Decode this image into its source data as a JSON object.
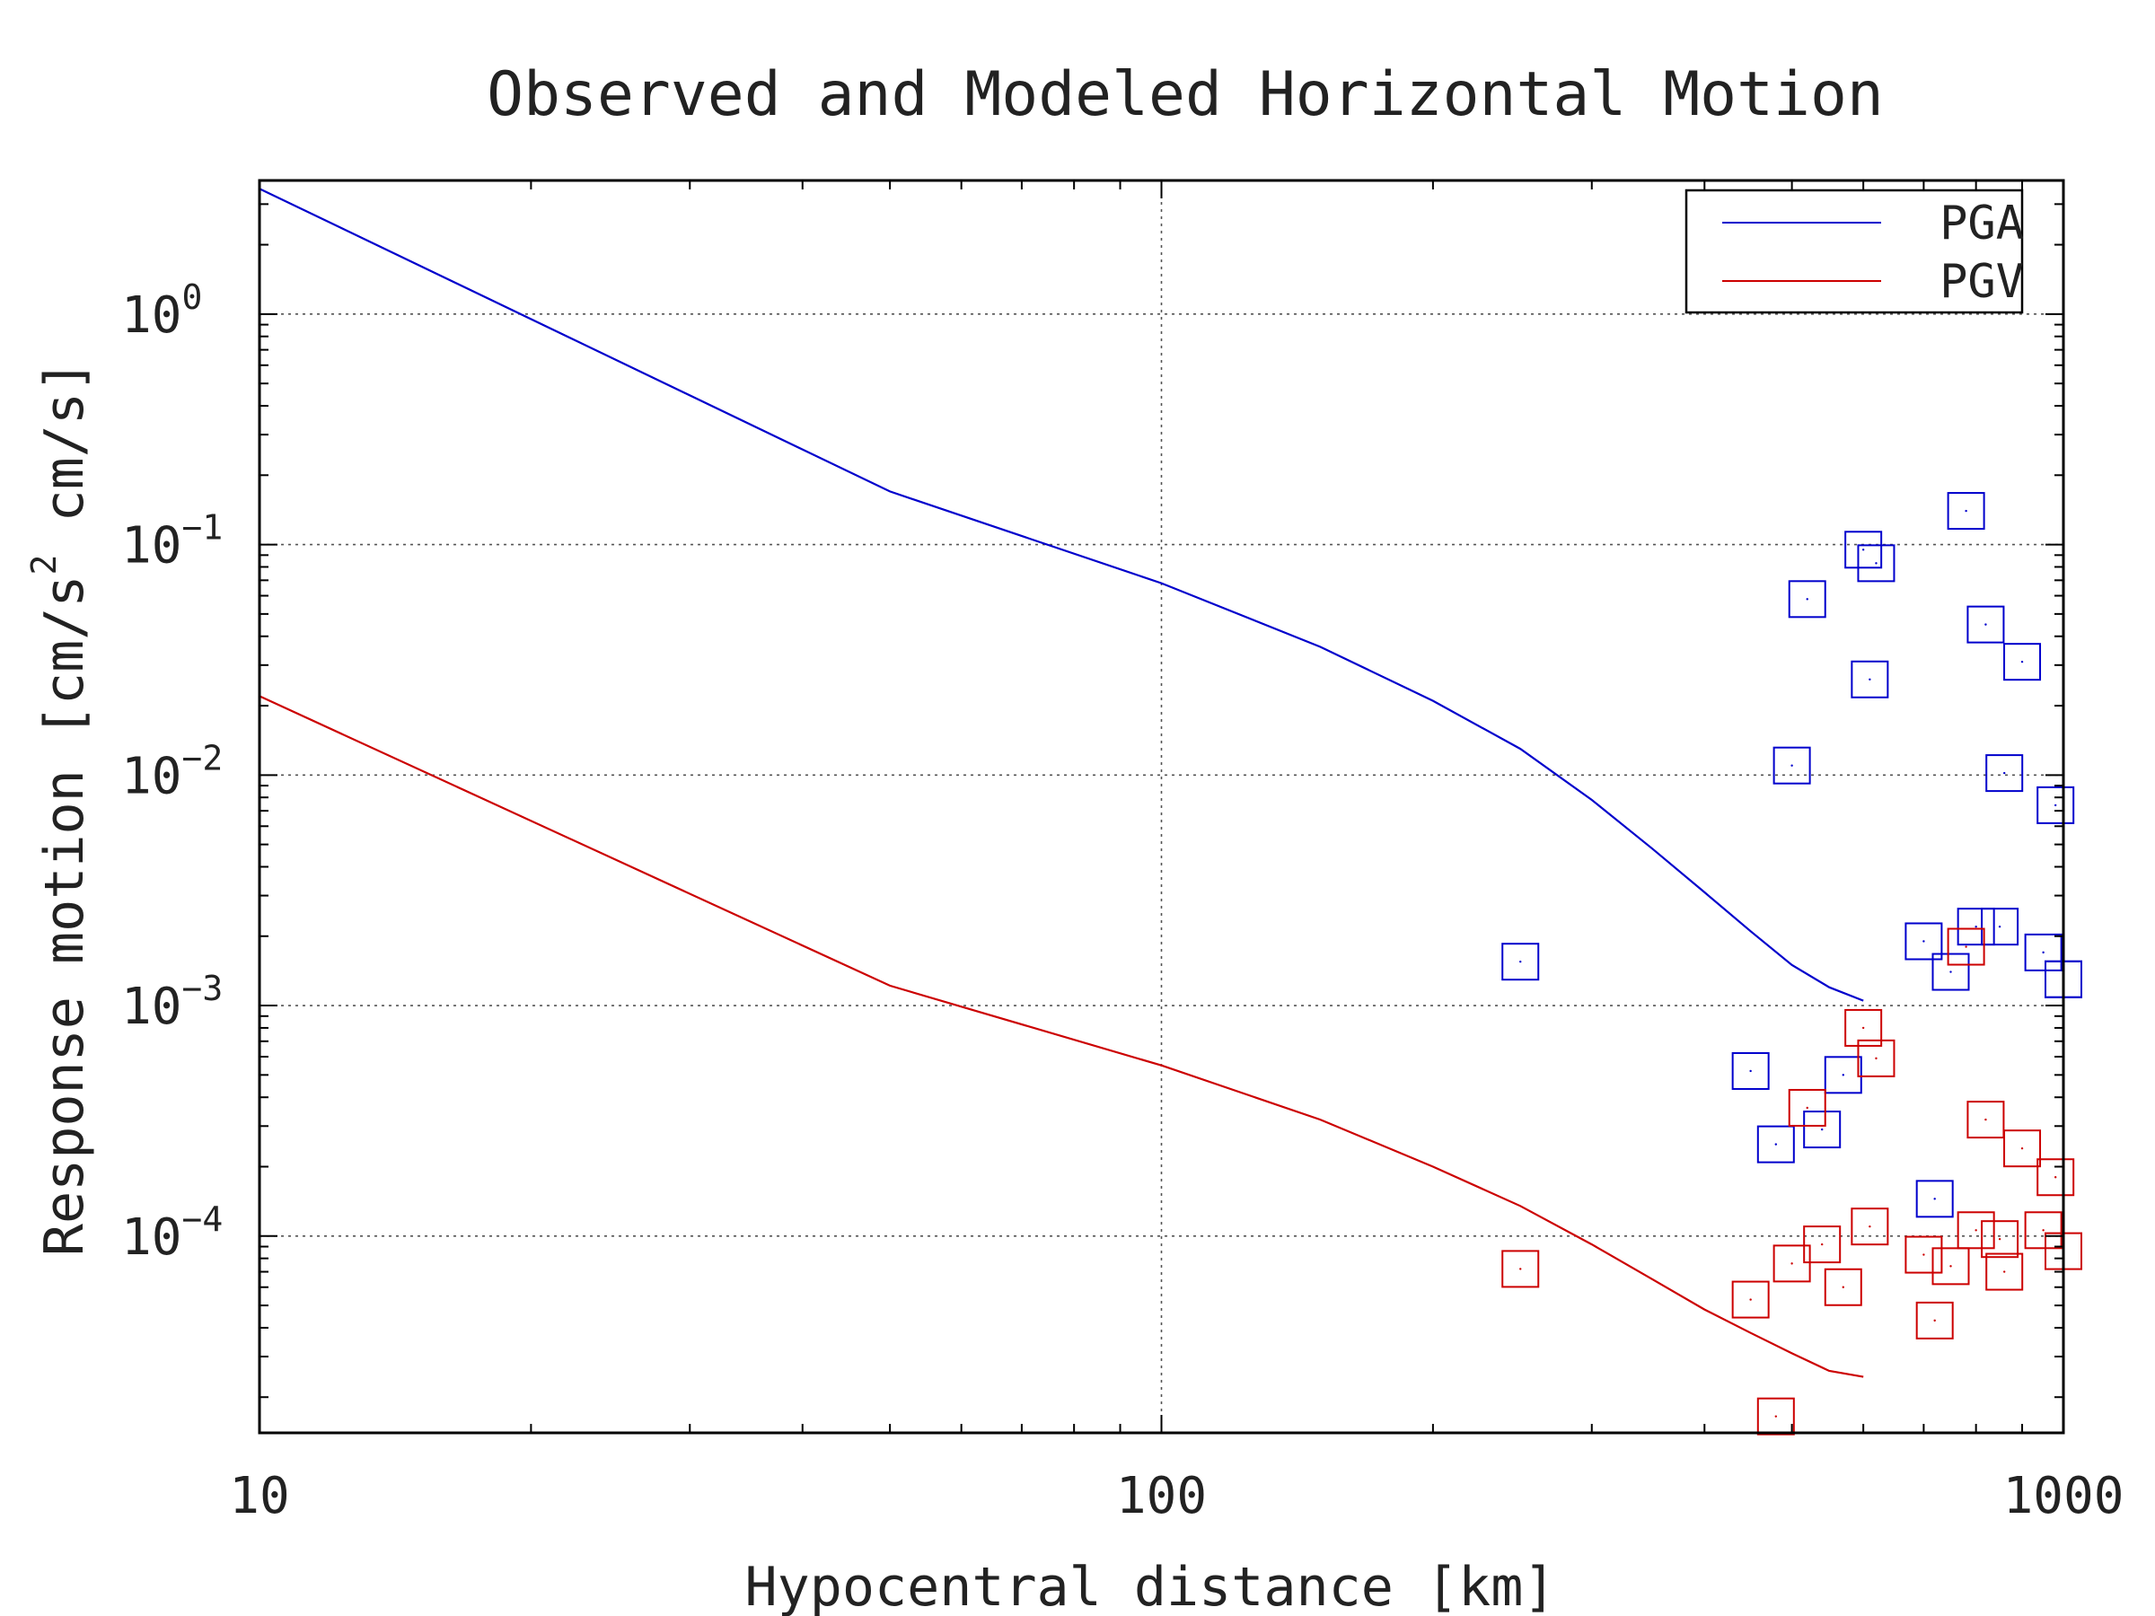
{
  "chart_data": {
    "type": "scatter",
    "title": "Observed and Modeled Horizontal Motion",
    "xlabel": "Hypocentral distance [km]",
    "ylabel": {
      "text": "Response motion [cm/s",
      "sup": "2",
      "suffix": " cm/s]"
    },
    "xscale": "log",
    "yscale": "log",
    "xlim": [
      10,
      1000
    ],
    "ylim": [
      1.4e-05,
      3.8
    ],
    "x_ticks": [
      {
        "value": 10,
        "label": "10"
      },
      {
        "value": 100,
        "label": "100"
      },
      {
        "value": 1000,
        "label": "1000"
      }
    ],
    "y_ticks": [
      {
        "value": 1,
        "base": "10",
        "exp": "0"
      },
      {
        "value": 0.1,
        "base": "10",
        "exp": "−1"
      },
      {
        "value": 0.01,
        "base": "10",
        "exp": "−2"
      },
      {
        "value": 0.001,
        "base": "10",
        "exp": "−3"
      },
      {
        "value": 0.0001,
        "base": "10",
        "exp": "−4"
      }
    ],
    "grid": true,
    "legend_position": "top-right",
    "series": [
      {
        "name": "PGA",
        "color": "#0000cc",
        "model": {
          "x": [
            10,
            50,
            100,
            150,
            200,
            250,
            300,
            350,
            400,
            450,
            500,
            550,
            600
          ],
          "y": [
            3.5,
            0.17,
            0.068,
            0.036,
            0.021,
            0.013,
            0.0078,
            0.0048,
            0.0031,
            0.0021,
            0.0015,
            0.0012,
            0.00105
          ]
        },
        "observed": {
          "x": [
            250,
            450,
            480,
            500,
            520,
            540,
            570,
            600,
            610,
            620,
            700,
            720,
            750,
            780,
            800,
            820,
            850,
            860,
            900,
            950,
            980,
            1000,
            1000
          ],
          "y": [
            0.00155,
            0.00052,
            0.00025,
            0.011,
            0.058,
            0.00029,
            0.0005,
            0.095,
            0.026,
            0.083,
            0.0019,
            0.000145,
            0.0014,
            0.14,
            0.0022,
            0.045,
            0.0022,
            0.0102,
            0.031,
            0.0017,
            0.0074,
            0.0013,
            0.0013
          ]
        }
      },
      {
        "name": "PGV",
        "color": "#cc0000",
        "model": {
          "x": [
            10,
            50,
            100,
            150,
            200,
            250,
            300,
            350,
            400,
            450,
            500,
            550,
            600
          ],
          "y": [
            0.022,
            0.00122,
            0.00055,
            0.00032,
            0.0002,
            0.000135,
            9.2e-05,
            6.5e-05,
            4.8e-05,
            3.8e-05,
            3.1e-05,
            2.6e-05,
            2.45e-05
          ]
        },
        "observed": {
          "x": [
            250,
            450,
            480,
            500,
            520,
            540,
            570,
            600,
            610,
            620,
            700,
            720,
            750,
            780,
            800,
            820,
            850,
            860,
            900,
            950,
            980,
            1000
          ],
          "y": [
            7.2e-05,
            5.3e-05,
            1.65e-05,
            7.6e-05,
            0.00036,
            9.2e-05,
            6e-05,
            0.0008,
            0.00011,
            0.00059,
            8.3e-05,
            4.3e-05,
            7.4e-05,
            0.0018,
            0.000106,
            0.00032,
            9.7e-05,
            7e-05,
            0.00024,
            0.000106,
            0.00018,
            8.6e-05
          ]
        }
      }
    ]
  }
}
